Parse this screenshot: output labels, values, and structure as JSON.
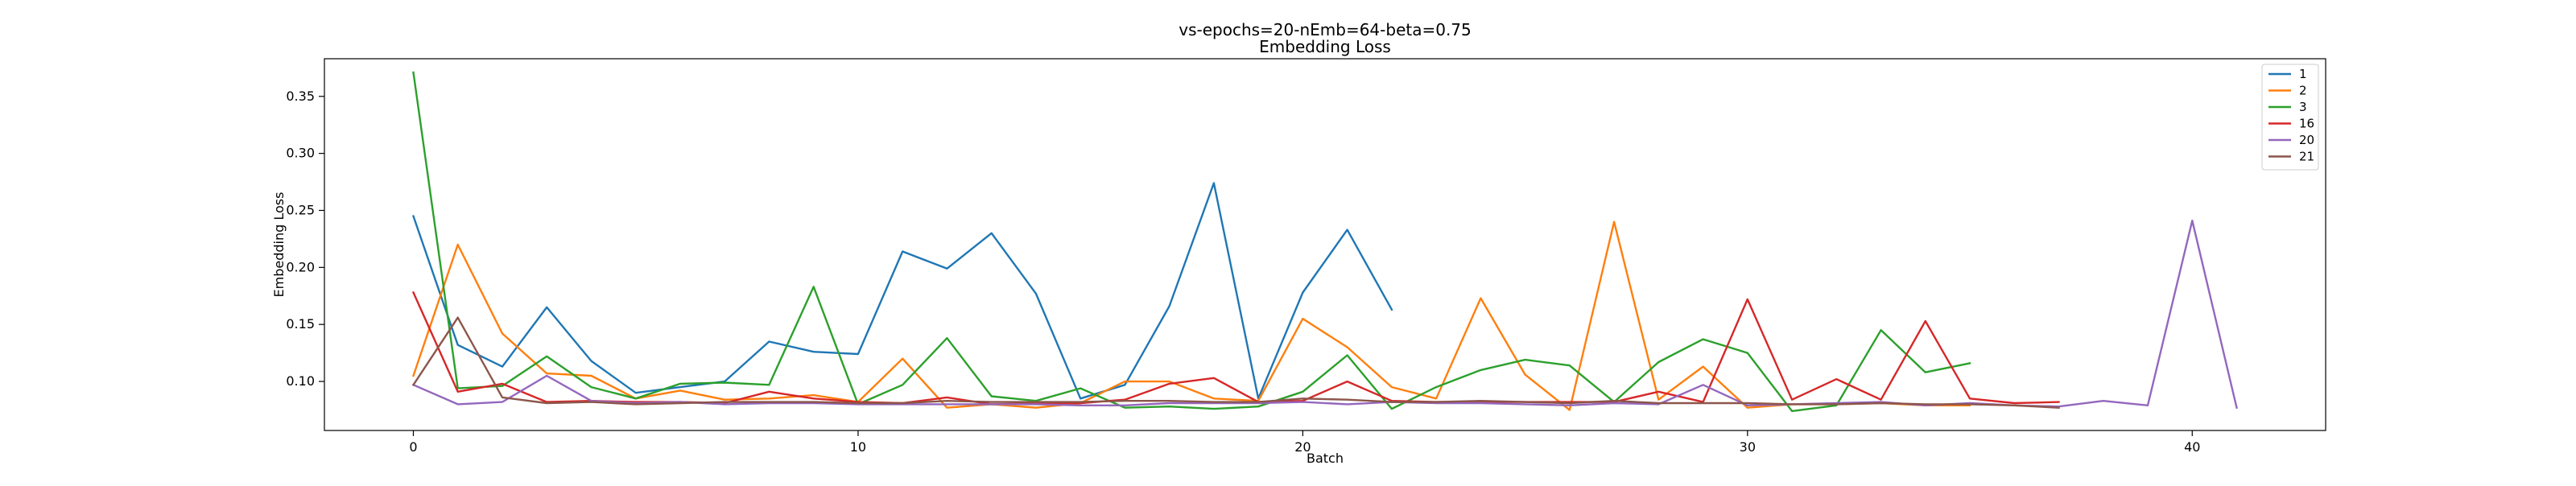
{
  "chart_data": {
    "type": "line",
    "title": "vs-epochs=20-nEmb=64-beta=0.75",
    "subtitle": "Embedding Loss",
    "xlabel": "Batch",
    "ylabel": "Embedding Loss",
    "xlim": [
      -2,
      43
    ],
    "ylim": [
      0.057,
      0.383
    ],
    "xticks": [
      0,
      10,
      20,
      30,
      40
    ],
    "yticks": [
      0.1,
      0.15,
      0.2,
      0.25,
      0.3,
      0.35
    ],
    "xtick_labels": [
      "0",
      "10",
      "20",
      "30",
      "40"
    ],
    "ytick_labels": [
      "0.10",
      "0.15",
      "0.20",
      "0.25",
      "0.30",
      "0.35"
    ],
    "grid": false,
    "legend_position": "top-right",
    "series": [
      {
        "name": "1",
        "color": "#1f77b4",
        "values": [
          0.245,
          0.132,
          0.113,
          0.165,
          0.118,
          0.09,
          0.095,
          0.1,
          0.135,
          0.126,
          0.124,
          0.214,
          0.199,
          0.23,
          0.177,
          0.085,
          0.097,
          0.166,
          0.274,
          0.085,
          0.178,
          0.233,
          0.163
        ]
      },
      {
        "name": "2",
        "color": "#ff7f0e",
        "values": [
          0.105,
          0.22,
          0.142,
          0.107,
          0.105,
          0.085,
          0.092,
          0.084,
          0.085,
          0.088,
          0.082,
          0.12,
          0.077,
          0.08,
          0.077,
          0.081,
          0.1,
          0.1,
          0.085,
          0.083,
          0.155,
          0.13,
          0.095,
          0.085,
          0.173,
          0.106,
          0.075,
          0.24,
          0.084,
          0.113,
          0.077,
          0.08,
          0.08,
          0.081,
          0.079,
          0.079
        ]
      },
      {
        "name": "3",
        "color": "#2ca02c",
        "values": [
          0.371,
          0.094,
          0.096,
          0.122,
          0.095,
          0.085,
          0.098,
          0.099,
          0.097,
          0.183,
          0.08,
          0.097,
          0.138,
          0.087,
          0.083,
          0.094,
          0.077,
          0.078,
          0.076,
          0.078,
          0.091,
          0.123,
          0.076,
          0.095,
          0.11,
          0.119,
          0.114,
          0.082,
          0.117,
          0.137,
          0.125,
          0.074,
          0.079,
          0.145,
          0.108,
          0.116
        ]
      },
      {
        "name": "16",
        "color": "#d62728",
        "values": [
          0.178,
          0.091,
          0.098,
          0.082,
          0.083,
          0.082,
          0.082,
          0.081,
          0.091,
          0.085,
          0.082,
          0.081,
          0.086,
          0.08,
          0.081,
          0.081,
          0.084,
          0.098,
          0.103,
          0.082,
          0.083,
          0.1,
          0.083,
          0.082,
          0.082,
          0.082,
          0.082,
          0.082,
          0.091,
          0.082,
          0.172,
          0.084,
          0.102,
          0.084,
          0.153,
          0.085,
          0.081,
          0.082
        ]
      },
      {
        "name": "20",
        "color": "#9467bd",
        "values": [
          0.097,
          0.08,
          0.082,
          0.105,
          0.083,
          0.081,
          0.082,
          0.08,
          0.081,
          0.081,
          0.08,
          0.08,
          0.08,
          0.08,
          0.08,
          0.079,
          0.079,
          0.081,
          0.081,
          0.081,
          0.082,
          0.08,
          0.082,
          0.081,
          0.081,
          0.08,
          0.079,
          0.081,
          0.08,
          0.097,
          0.079,
          0.08,
          0.081,
          0.082,
          0.079,
          0.081,
          0.079,
          0.078,
          0.083,
          0.079,
          0.241,
          0.077
        ]
      },
      {
        "name": "21",
        "color": "#8c564b",
        "values": [
          0.097,
          0.156,
          0.086,
          0.081,
          0.082,
          0.08,
          0.081,
          0.082,
          0.082,
          0.082,
          0.081,
          0.081,
          0.083,
          0.082,
          0.082,
          0.082,
          0.083,
          0.083,
          0.082,
          0.082,
          0.085,
          0.084,
          0.082,
          0.082,
          0.083,
          0.082,
          0.081,
          0.083,
          0.081,
          0.081,
          0.081,
          0.08,
          0.08,
          0.081,
          0.08,
          0.08,
          0.079,
          0.077
        ]
      }
    ]
  }
}
